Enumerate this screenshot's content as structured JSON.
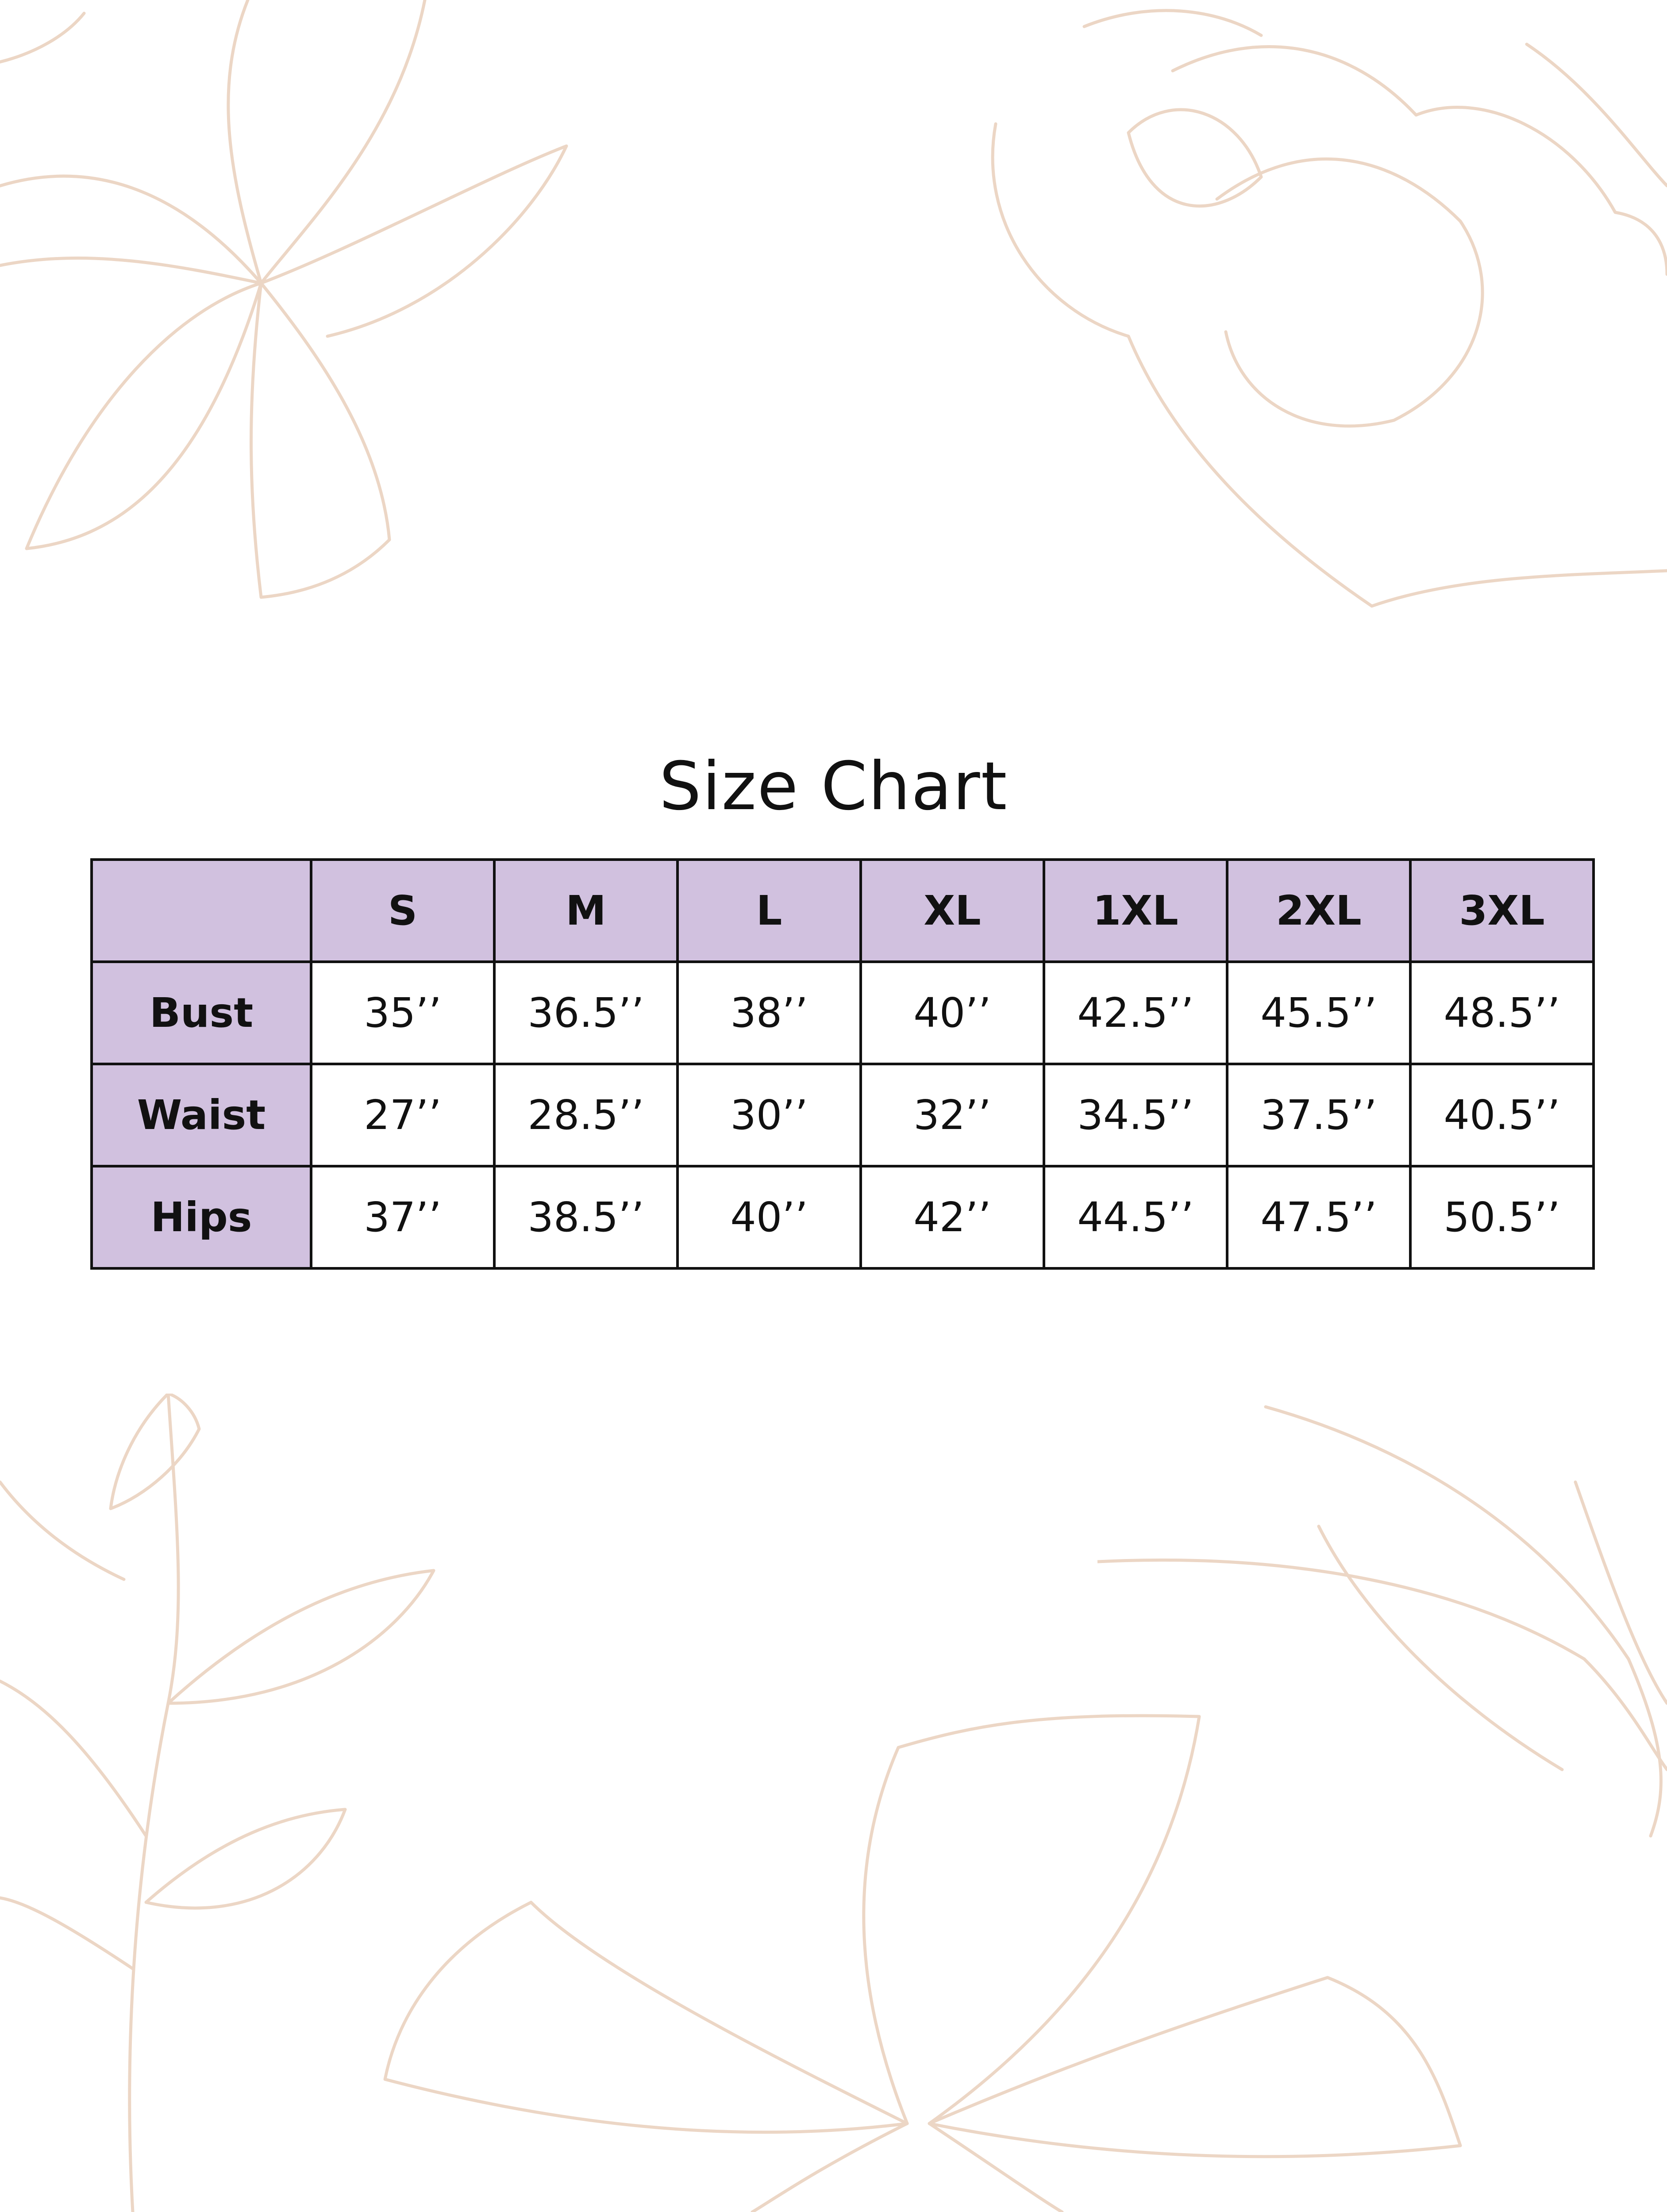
{
  "title": "Size Chart",
  "colors": {
    "header_fill": "#d1c1df",
    "border": "#111111",
    "floral_line": "#ecd6c5"
  },
  "table": {
    "columns": [
      "S",
      "M",
      "L",
      "XL",
      "1XL",
      "2XL",
      "3XL"
    ],
    "rows": [
      {
        "label": "Bust",
        "values": [
          "35’’",
          "36.5’’",
          "38’’",
          "40’’",
          "42.5’’",
          "45.5’’",
          "48.5’’"
        ]
      },
      {
        "label": "Waist",
        "values": [
          "27’’",
          "28.5’’",
          "30’’",
          "32’’",
          "34.5’’",
          "37.5’’",
          "40.5’’"
        ]
      },
      {
        "label": "Hips",
        "values": [
          "37’’",
          "38.5’’",
          "40’’",
          "42’’",
          "44.5’’",
          "47.5’’",
          "50.5’’"
        ]
      }
    ]
  }
}
